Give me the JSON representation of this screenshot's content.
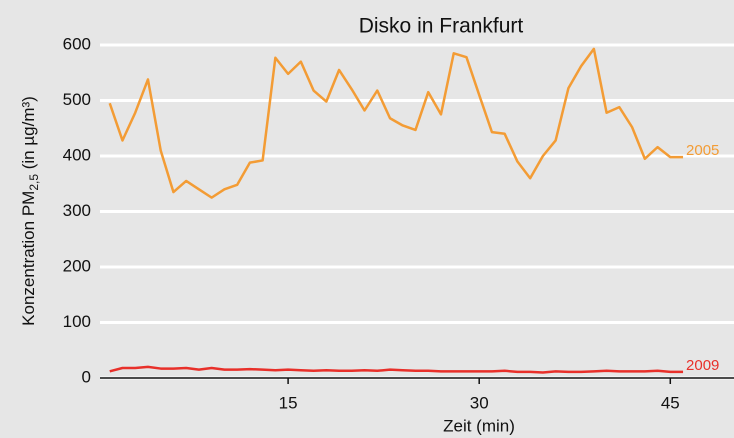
{
  "chart_data": {
    "type": "line",
    "title": "Disko in Frankfurt",
    "xlabel": "Zeit (min)",
    "ylabel": {
      "main": "Konzentration PM",
      "sub": "2,5",
      "rest": " (in µg/m³)"
    },
    "x": [
      1,
      2,
      3,
      4,
      5,
      6,
      7,
      8,
      9,
      10,
      11,
      12,
      13,
      14,
      15,
      16,
      17,
      18,
      19,
      20,
      21,
      22,
      23,
      24,
      25,
      26,
      27,
      28,
      29,
      30,
      31,
      32,
      33,
      34,
      35,
      36,
      37,
      38,
      39,
      40,
      41,
      42,
      43,
      44,
      45,
      46
    ],
    "series": [
      {
        "name": "2005",
        "color": "#f39c35",
        "values": [
          495,
          428,
          478,
          538,
          410,
          335,
          355,
          340,
          325,
          340,
          348,
          388,
          392,
          577,
          548,
          570,
          518,
          498,
          555,
          520,
          482,
          518,
          468,
          455,
          447,
          515,
          475,
          585,
          578,
          510,
          443,
          440,
          390,
          360,
          400,
          428,
          522,
          562,
          593,
          478,
          488,
          452,
          395,
          416,
          398,
          398
        ]
      },
      {
        "name": "2009",
        "color": "#e8302a",
        "values": [
          12,
          18,
          18,
          20,
          17,
          17,
          18,
          15,
          18,
          15,
          15,
          16,
          15,
          14,
          15,
          14,
          13,
          14,
          13,
          13,
          14,
          13,
          15,
          14,
          13,
          13,
          12,
          12,
          12,
          12,
          12,
          13,
          11,
          11,
          10,
          12,
          11,
          11,
          12,
          13,
          12,
          12,
          12,
          13,
          11,
          11
        ]
      }
    ],
    "xlim": [
      0,
      50
    ],
    "ylim": [
      0,
      600
    ],
    "xticks": [
      15,
      30,
      45
    ],
    "yticks": [
      0,
      100,
      200,
      300,
      400,
      500,
      600
    ],
    "grid": true
  }
}
